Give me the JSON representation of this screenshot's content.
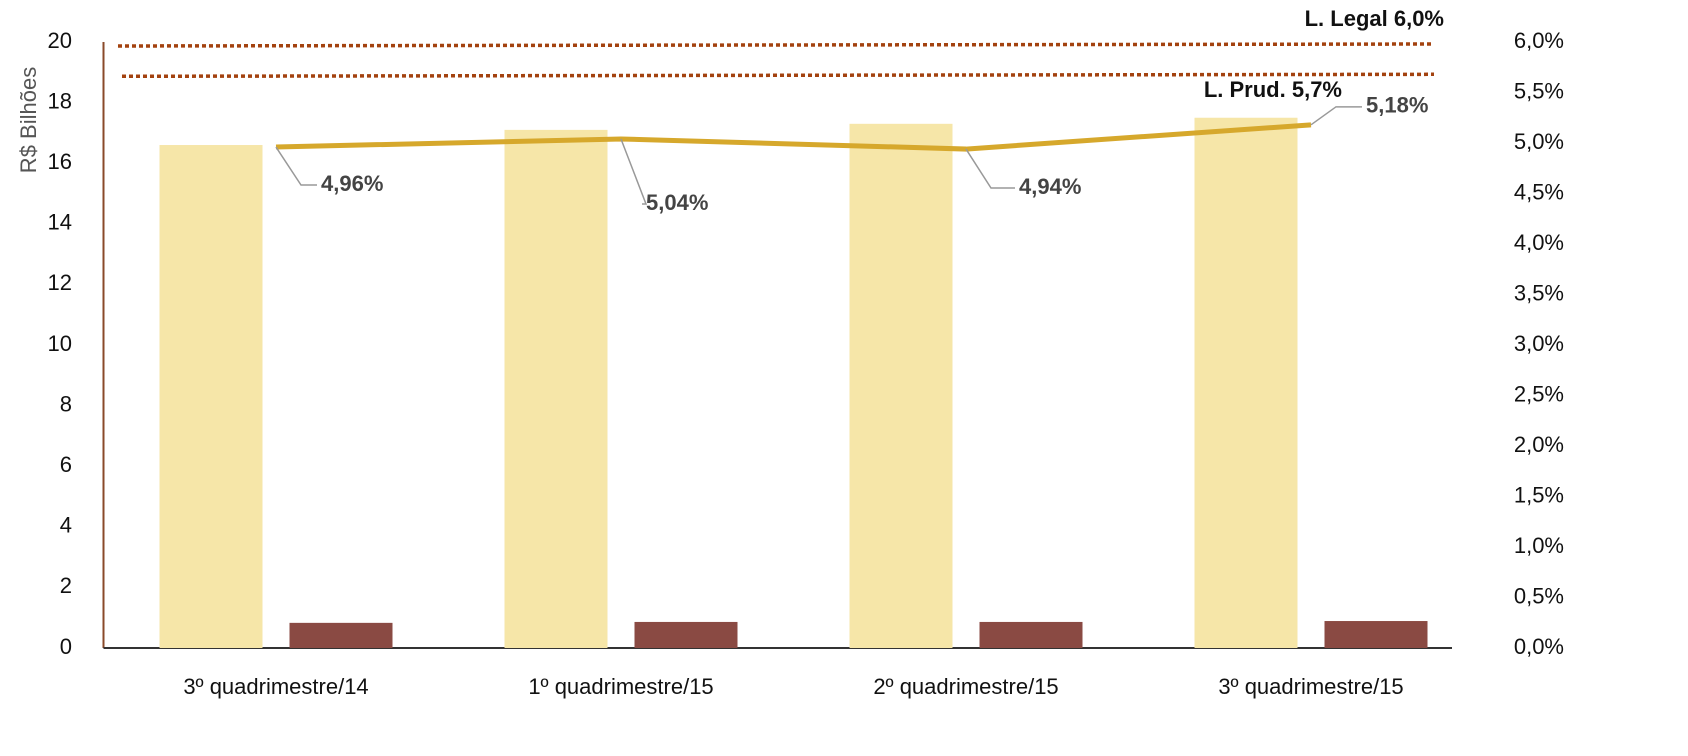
{
  "chart_data": {
    "type": "bar",
    "y_axis_label": "R$ Bilhões",
    "categories": [
      "3º quadrimestre/14",
      "1º quadrimestre/15",
      "2º quadrimestre/15",
      "3º quadrimestre/15"
    ],
    "ylim": [
      0,
      20
    ],
    "yticks": [
      0,
      2,
      4,
      6,
      8,
      10,
      12,
      14,
      16,
      18,
      20
    ],
    "y2lim": [
      0,
      6
    ],
    "y2ticks": [
      {
        "value": 0,
        "label": "0,0%"
      },
      {
        "value": 0.5,
        "label": "0,5%"
      },
      {
        "value": 1,
        "label": "1,0%"
      },
      {
        "value": 1.5,
        "label": "1,5%"
      },
      {
        "value": 2,
        "label": "2,0%"
      },
      {
        "value": 2.5,
        "label": "2,5%"
      },
      {
        "value": 3,
        "label": "3,0%"
      },
      {
        "value": 3.5,
        "label": "3,5%"
      },
      {
        "value": 4,
        "label": "4,0%"
      },
      {
        "value": 4.5,
        "label": "4,5%"
      },
      {
        "value": 5,
        "label": "5,0%"
      },
      {
        "value": 5.5,
        "label": "5,5%"
      },
      {
        "value": 6,
        "label": "6,0%"
      }
    ],
    "series": [
      {
        "type": "bar",
        "color": "#f6e6a8",
        "values": [
          16.6,
          17.1,
          17.3,
          17.5
        ]
      },
      {
        "type": "bar",
        "color": "#8a4a43",
        "values": [
          0.83,
          0.86,
          0.86,
          0.89
        ]
      },
      {
        "type": "line",
        "axis": "y2",
        "color": "#d6a82c",
        "values": [
          4.96,
          5.04,
          4.94,
          5.18
        ],
        "value_labels": [
          "4,96%",
          "5,04%",
          "4,94%",
          "5,18%"
        ]
      }
    ],
    "reference_lines": [
      {
        "label": "L. Legal 6,0%",
        "value": 6,
        "color": "#a3420f"
      },
      {
        "label": "L. Prud. 5,7%",
        "value": 5.7,
        "color": "#a3420f"
      }
    ]
  }
}
